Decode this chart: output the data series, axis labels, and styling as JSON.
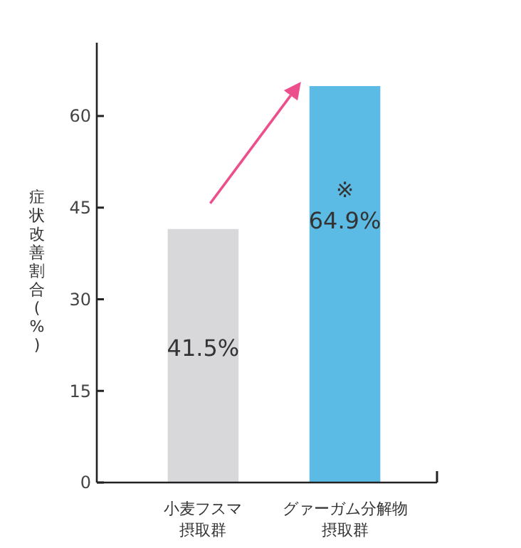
{
  "chart_data": {
    "type": "bar",
    "ylabel": "症状改善割合(%)",
    "categories": [
      "小麦フスマ摂取群",
      "グァーガム分解物摂取群"
    ],
    "values": [
      41.5,
      64.9
    ],
    "colors": [
      "#d8d8da",
      "#5bbbe4"
    ],
    "value_labels": [
      "41.5%",
      "64.9%"
    ],
    "annotations": [
      "※"
    ],
    "ylim": [
      0,
      72
    ],
    "yticks": [
      0,
      15,
      30,
      45,
      60
    ],
    "grid": false
  }
}
